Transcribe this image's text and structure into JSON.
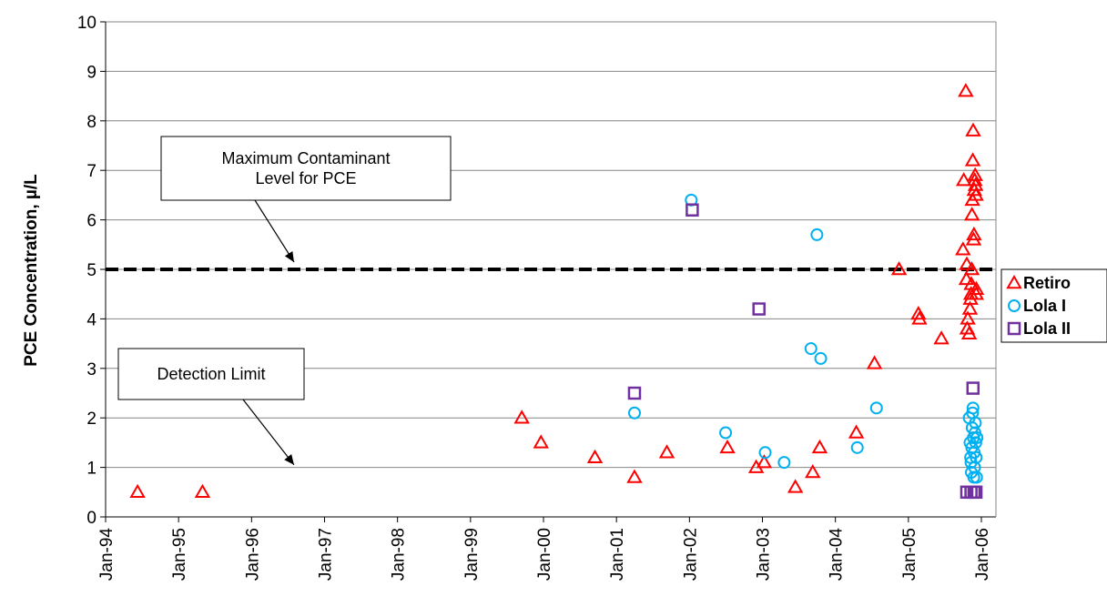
{
  "chart_data": {
    "type": "scatter",
    "ylabel": "PCE Concentration, µ/L",
    "xlabel": "",
    "ylim": [
      0,
      10
    ],
    "yticks": [
      "0",
      "1",
      "2",
      "3",
      "4",
      "5",
      "6",
      "7",
      "8",
      "9",
      "10"
    ],
    "xlim": [
      "1994-01-01",
      "2006-03-01"
    ],
    "xticks": [
      "Jan-94",
      "Jan-95",
      "Jan-96",
      "Jan-97",
      "Jan-98",
      "Jan-99",
      "Jan-00",
      "Jan-01",
      "Jan-02",
      "Jan-03",
      "Jan-04",
      "Jan-05",
      "Jan-06"
    ],
    "grid": "horizontal",
    "legend_position": "right",
    "colors": {
      "Retiro": "#ff0000",
      "Lola I": "#00b0f0",
      "Lola II": "#7030a0",
      "mcl_line": "#000000"
    },
    "reference_lines": [
      {
        "y": 5,
        "style": "dashed",
        "label": "Maximum Contaminant Level for PCE"
      }
    ],
    "annotations": [
      {
        "lines": [
          "Maximum Contaminant",
          "Level for PCE"
        ],
        "points_to": {
          "x": "1996-08-01",
          "y": 5
        }
      },
      {
        "lines": [
          "Detection Limit"
        ],
        "points_to": {
          "x": "1996-08-01",
          "y": 0.5
        }
      }
    ],
    "series": [
      {
        "name": "Retiro",
        "marker": "triangle",
        "points": [
          [
            "1994-06-10",
            0.5
          ],
          [
            "1995-05-01",
            0.5
          ],
          [
            "1999-09-15",
            2.0
          ],
          [
            "1999-12-20",
            1.5
          ],
          [
            "2000-09-15",
            1.2
          ],
          [
            "2001-04-01",
            0.8
          ],
          [
            "2001-09-10",
            1.3
          ],
          [
            "2002-07-10",
            1.4
          ],
          [
            "2002-12-01",
            1.0
          ],
          [
            "2003-01-10",
            1.1
          ],
          [
            "2003-06-15",
            0.6
          ],
          [
            "2003-09-10",
            0.9
          ],
          [
            "2003-10-15",
            1.4
          ],
          [
            "2004-04-15",
            1.7
          ],
          [
            "2004-07-15",
            3.1
          ],
          [
            "2004-11-15",
            5.0
          ],
          [
            "2005-02-20",
            4.1
          ],
          [
            "2005-02-25",
            4.0
          ],
          [
            "2005-06-15",
            3.6
          ],
          [
            "2005-10-15",
            8.6
          ],
          [
            "2005-10-05",
            6.8
          ],
          [
            "2005-10-01",
            5.4
          ],
          [
            "2005-10-20",
            5.1
          ],
          [
            "2005-10-18",
            4.8
          ],
          [
            "2005-10-25",
            4.0
          ],
          [
            "2005-10-22",
            3.8
          ],
          [
            "2005-11-01",
            3.7
          ],
          [
            "2005-11-05",
            4.2
          ],
          [
            "2005-11-08",
            4.4
          ],
          [
            "2005-11-10",
            4.5
          ],
          [
            "2005-11-12",
            4.7
          ],
          [
            "2005-11-14",
            5.0
          ],
          [
            "2005-11-15",
            6.1
          ],
          [
            "2005-11-17",
            6.4
          ],
          [
            "2005-11-19",
            7.2
          ],
          [
            "2005-11-21",
            7.8
          ],
          [
            "2005-11-23",
            5.6
          ],
          [
            "2005-11-25",
            5.7
          ],
          [
            "2005-11-27",
            6.6
          ],
          [
            "2005-11-29",
            6.8
          ],
          [
            "2005-12-01",
            6.9
          ],
          [
            "2005-12-03",
            6.7
          ],
          [
            "2005-12-05",
            6.5
          ],
          [
            "2005-12-06",
            4.5
          ],
          [
            "2005-12-07",
            4.6
          ]
        ]
      },
      {
        "name": "Lola I",
        "marker": "circle",
        "points": [
          [
            "2001-04-01",
            2.1
          ],
          [
            "2002-01-10",
            6.4
          ],
          [
            "2002-07-01",
            1.7
          ],
          [
            "2003-01-15",
            1.3
          ],
          [
            "2003-04-20",
            1.1
          ],
          [
            "2003-09-01",
            3.4
          ],
          [
            "2003-10-01",
            5.7
          ],
          [
            "2003-10-20",
            3.2
          ],
          [
            "2004-04-20",
            1.4
          ],
          [
            "2004-07-25",
            2.2
          ],
          [
            "2005-11-01",
            2.0
          ],
          [
            "2005-11-05",
            1.5
          ],
          [
            "2005-11-08",
            1.2
          ],
          [
            "2005-11-10",
            1.1
          ],
          [
            "2005-11-12",
            0.9
          ],
          [
            "2005-11-14",
            1.4
          ],
          [
            "2005-11-16",
            1.8
          ],
          [
            "2005-11-18",
            2.1
          ],
          [
            "2005-11-20",
            2.2
          ],
          [
            "2005-11-22",
            1.6
          ],
          [
            "2005-11-24",
            0.8
          ],
          [
            "2005-11-26",
            1.3
          ],
          [
            "2005-11-28",
            1.0
          ],
          [
            "2005-11-30",
            1.7
          ],
          [
            "2005-12-02",
            1.9
          ],
          [
            "2005-12-04",
            1.5
          ],
          [
            "2005-12-06",
            1.2
          ],
          [
            "2005-12-08",
            0.8
          ],
          [
            "2005-12-10",
            1.6
          ]
        ]
      },
      {
        "name": "Lola II",
        "marker": "square",
        "points": [
          [
            "2001-04-01",
            2.5
          ],
          [
            "2002-01-15",
            6.2
          ],
          [
            "2002-12-15",
            4.2
          ],
          [
            "2005-10-20",
            0.5
          ],
          [
            "2005-11-10",
            0.5
          ],
          [
            "2005-11-25",
            0.5
          ],
          [
            "2005-12-05",
            0.5
          ],
          [
            "2005-11-20",
            2.6
          ]
        ]
      }
    ]
  }
}
